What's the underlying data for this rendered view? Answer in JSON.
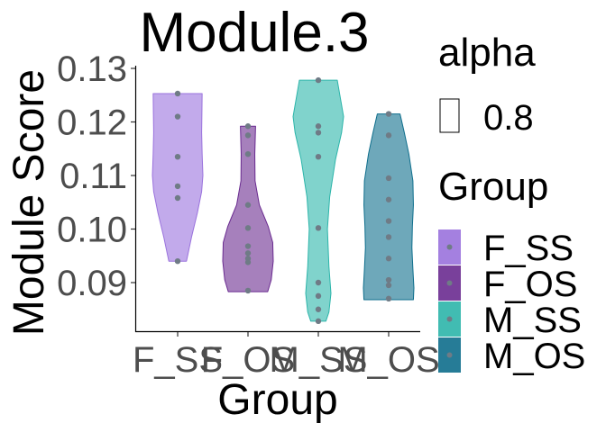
{
  "chart_data": {
    "type": "violin",
    "title": "Module.3",
    "xlabel": "Group",
    "ylabel": "Module Score",
    "ylim": [
      0.081,
      0.13
    ],
    "yticks": [
      "0.09",
      "0.10",
      "0.11",
      "0.12",
      "0.13"
    ],
    "ytick_values": [
      0.09,
      0.1,
      0.11,
      0.12,
      0.13
    ],
    "categories": [
      "F_SS",
      "F_OS",
      "M_SS",
      "M_OS"
    ],
    "colors": [
      "#9A72DD",
      "#6A2B90",
      "#2CB5AA",
      "#0E6E8C"
    ],
    "fill_opacity": 0.6,
    "grid": false,
    "legend_position": "right",
    "legend": {
      "alpha_title": "alpha",
      "alpha_value": "0.8",
      "group_title": "Group",
      "entries": [
        "F_SS",
        "F_OS",
        "M_SS",
        "M_OS"
      ]
    },
    "series": [
      {
        "group": "F_SS",
        "min": 0.094,
        "max": 0.1253,
        "points": [
          0.1253,
          0.121,
          0.1135,
          0.108,
          0.1058,
          0.094
        ]
      },
      {
        "group": "F_OS",
        "min": 0.0883,
        "max": 0.1192,
        "points": [
          0.1192,
          0.1175,
          0.114,
          0.1045,
          0.1002,
          0.0968,
          0.0955,
          0.0945,
          0.0938,
          0.0885
        ]
      },
      {
        "group": "M_SS",
        "min": 0.0828,
        "max": 0.1278,
        "points": [
          0.1278,
          0.1192,
          0.118,
          0.1135,
          0.1002,
          0.09,
          0.0875,
          0.085,
          0.0828
        ]
      },
      {
        "group": "M_OS",
        "min": 0.0868,
        "max": 0.1215,
        "points": [
          0.1215,
          0.1175,
          0.1095,
          0.1055,
          0.1015,
          0.0985,
          0.0945,
          0.0905,
          0.0895,
          0.087
        ]
      }
    ],
    "shapes": [
      [
        [
          0.094,
          0.35
        ],
        [
          0.0985,
          0.55
        ],
        [
          0.103,
          0.78
        ],
        [
          0.107,
          0.95
        ],
        [
          0.11,
          1.0
        ],
        [
          0.114,
          0.97
        ],
        [
          0.118,
          0.95
        ],
        [
          0.1215,
          0.96
        ],
        [
          0.1253,
          0.97
        ]
      ],
      [
        [
          0.0883,
          0.78
        ],
        [
          0.0905,
          0.92
        ],
        [
          0.094,
          1.0
        ],
        [
          0.0975,
          0.98
        ],
        [
          0.1005,
          0.8
        ],
        [
          0.1045,
          0.45
        ],
        [
          0.109,
          0.28
        ],
        [
          0.114,
          0.27
        ],
        [
          0.1192,
          0.3
        ]
      ],
      [
        [
          0.0828,
          0.3
        ],
        [
          0.0845,
          0.42
        ],
        [
          0.088,
          0.5
        ],
        [
          0.093,
          0.42
        ],
        [
          0.1,
          0.36
        ],
        [
          0.106,
          0.45
        ],
        [
          0.113,
          0.68
        ],
        [
          0.118,
          0.92
        ],
        [
          0.121,
          1.0
        ],
        [
          0.1278,
          0.75
        ]
      ],
      [
        [
          0.0868,
          0.98
        ],
        [
          0.089,
          1.0
        ],
        [
          0.0925,
          0.96
        ],
        [
          0.0965,
          0.92
        ],
        [
          0.1005,
          0.94
        ],
        [
          0.1045,
          0.98
        ],
        [
          0.109,
          0.96
        ],
        [
          0.114,
          0.8
        ],
        [
          0.118,
          0.62
        ],
        [
          0.1215,
          0.45
        ]
      ]
    ]
  }
}
